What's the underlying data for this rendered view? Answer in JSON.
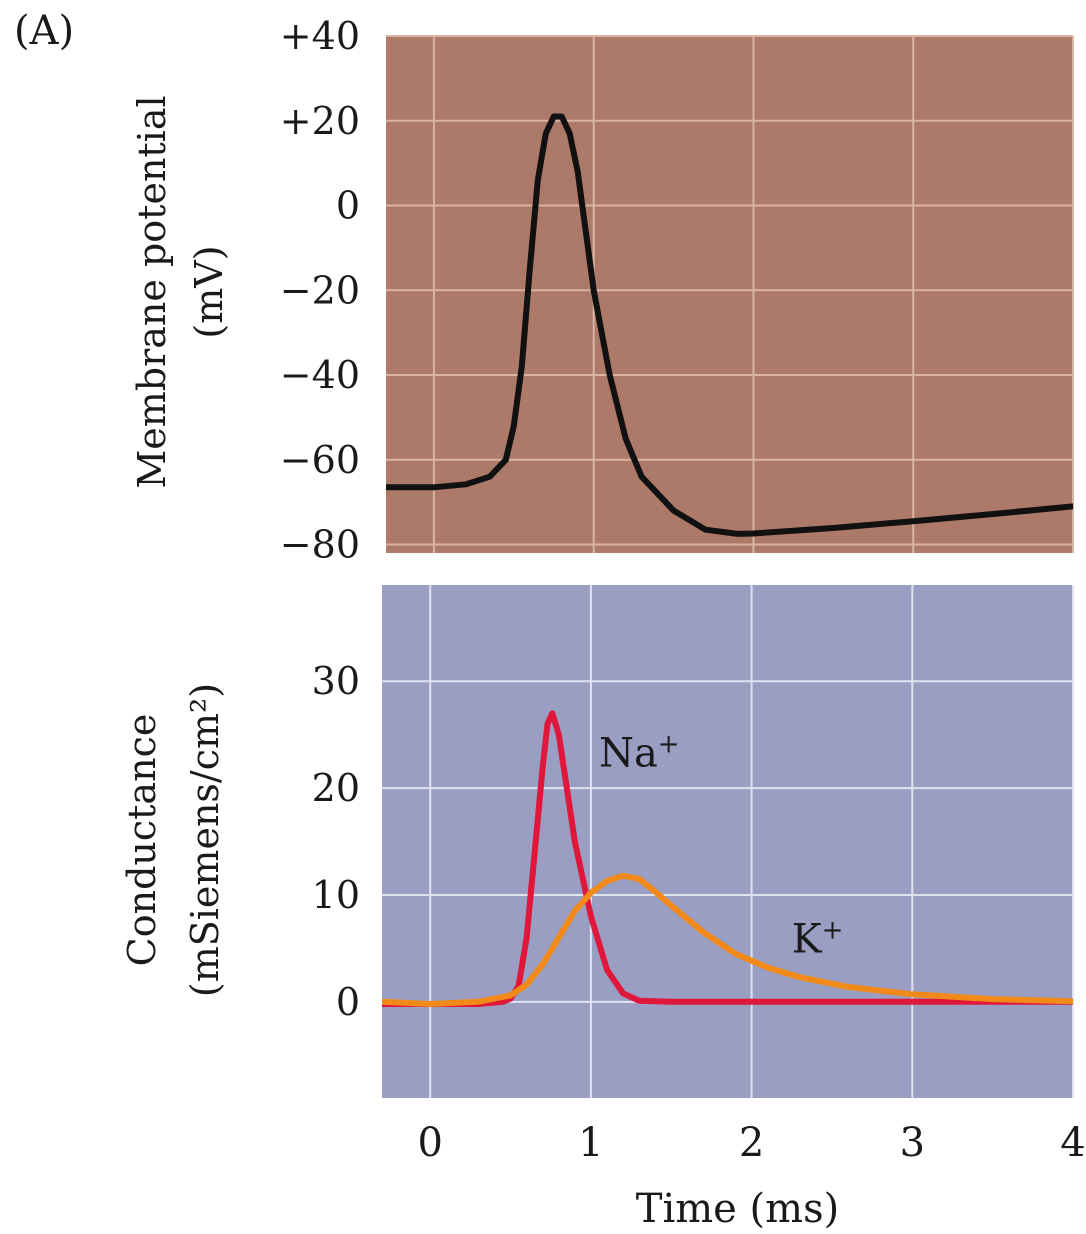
{
  "panel_label": "(A)",
  "chart_data": [
    {
      "type": "line",
      "background_color": "#ad7968",
      "grid_color": "#d9b3a3",
      "grid": true,
      "xlim": [
        -0.3,
        4
      ],
      "ylim": [
        -82,
        40
      ],
      "xticks": [
        0,
        1,
        2,
        3,
        4
      ],
      "yticks": [
        40,
        20,
        0,
        -20,
        -40,
        -60,
        -80
      ],
      "ytick_labels": [
        "+40",
        "+20",
        "0",
        "−20",
        "−40",
        "−60",
        "−80"
      ],
      "ylabel_lines": [
        "Membrane potential",
        "(mV)"
      ],
      "series": [
        {
          "color": "#111111",
          "points": [
            [
              -0.3,
              -66.5
            ],
            [
              0,
              -66.5
            ],
            [
              0.2,
              -65.8
            ],
            [
              0.35,
              -64
            ],
            [
              0.45,
              -60
            ],
            [
              0.5,
              -52
            ],
            [
              0.55,
              -38
            ],
            [
              0.6,
              -15
            ],
            [
              0.65,
              6
            ],
            [
              0.7,
              17
            ],
            [
              0.75,
              21
            ],
            [
              0.8,
              21
            ],
            [
              0.85,
              17
            ],
            [
              0.9,
              8
            ],
            [
              0.95,
              -6
            ],
            [
              1.0,
              -20
            ],
            [
              1.1,
              -40
            ],
            [
              1.2,
              -55
            ],
            [
              1.3,
              -64
            ],
            [
              1.5,
              -72
            ],
            [
              1.7,
              -76.5
            ],
            [
              1.9,
              -77.5
            ],
            [
              2.0,
              -77.4
            ],
            [
              2.5,
              -76.1
            ],
            [
              3.0,
              -74.5
            ],
            [
              3.5,
              -72.8
            ],
            [
              4.0,
              -71
            ]
          ]
        }
      ]
    },
    {
      "type": "line",
      "background_color": "#999ec2",
      "grid_color": "#e0e2ee",
      "grid": true,
      "xlim": [
        -0.3,
        4
      ],
      "ylim": [
        -9,
        39
      ],
      "xticks": [
        0,
        1,
        2,
        3,
        4
      ],
      "xtick_labels": [
        "0",
        "1",
        "2",
        "3",
        "4"
      ],
      "yticks": [
        30,
        20,
        10,
        0
      ],
      "ytick_labels": [
        "30",
        "20",
        "10",
        "0"
      ],
      "ylabel_lines": [
        "Conductance",
        "(mSiemens/cm²)"
      ],
      "xlabel": "Time (ms)",
      "series": [
        {
          "name": "Na",
          "name_sup": "+",
          "color": "#e0173a",
          "points": [
            [
              -0.3,
              -0.2
            ],
            [
              0.3,
              -0.2
            ],
            [
              0.45,
              0
            ],
            [
              0.5,
              0.3
            ],
            [
              0.55,
              1.5
            ],
            [
              0.6,
              6
            ],
            [
              0.65,
              14
            ],
            [
              0.7,
              22
            ],
            [
              0.73,
              26
            ],
            [
              0.76,
              27
            ],
            [
              0.8,
              25
            ],
            [
              0.85,
              20
            ],
            [
              0.9,
              15
            ],
            [
              1.0,
              8
            ],
            [
              1.1,
              3
            ],
            [
              1.2,
              0.8
            ],
            [
              1.3,
              0.1
            ],
            [
              1.5,
              0
            ],
            [
              4.0,
              0
            ]
          ]
        },
        {
          "name": "K",
          "name_sup": "+",
          "color": "#f28a1a",
          "points": [
            [
              -0.3,
              0
            ],
            [
              0,
              -0.2
            ],
            [
              0.3,
              0
            ],
            [
              0.5,
              0.6
            ],
            [
              0.6,
              1.6
            ],
            [
              0.7,
              3.5
            ],
            [
              0.8,
              6
            ],
            [
              0.9,
              8.5
            ],
            [
              1.0,
              10.2
            ],
            [
              1.1,
              11.3
            ],
            [
              1.2,
              11.8
            ],
            [
              1.3,
              11.5
            ],
            [
              1.4,
              10.3
            ],
            [
              1.5,
              9
            ],
            [
              1.7,
              6.5
            ],
            [
              1.9,
              4.5
            ],
            [
              2.1,
              3.2
            ],
            [
              2.3,
              2.3
            ],
            [
              2.6,
              1.4
            ],
            [
              3.0,
              0.7
            ],
            [
              3.5,
              0.25
            ],
            [
              4.0,
              0.05
            ]
          ]
        }
      ]
    }
  ]
}
